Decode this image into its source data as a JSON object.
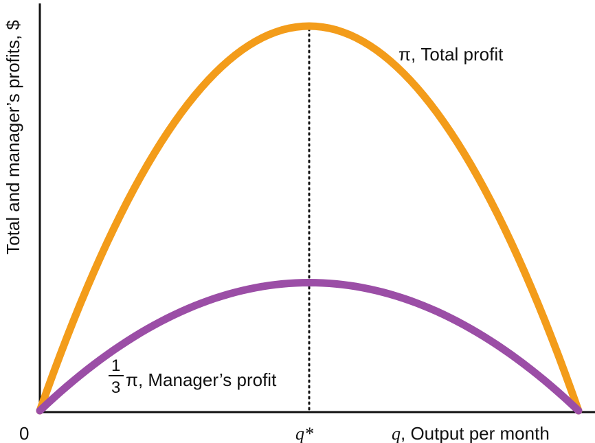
{
  "chart_data": {
    "type": "line",
    "title": "",
    "xlabel": {
      "symbol": "q",
      "text": ", Output per month"
    },
    "ylabel": "Total and manager’s profits, $",
    "xlim": [
      0,
      1
    ],
    "ylim": [
      0,
      1
    ],
    "x_ticks": [
      {
        "x": 0,
        "label": "0"
      },
      {
        "x": 0.5,
        "label": "q*"
      }
    ],
    "vertical_line_x": 0.5,
    "colors": {
      "total": "#f39c1a",
      "manager": "#9b4ea6",
      "axis": "#111111"
    },
    "series": [
      {
        "id": "total",
        "name": "π, Total profit",
        "peak": 1.0,
        "x_end": 1.0
      },
      {
        "id": "manager",
        "name": "π, Manager’s profit",
        "fraction": {
          "num": "1",
          "den": "3"
        },
        "peak": 0.333,
        "x_end": 1.0
      }
    ]
  }
}
